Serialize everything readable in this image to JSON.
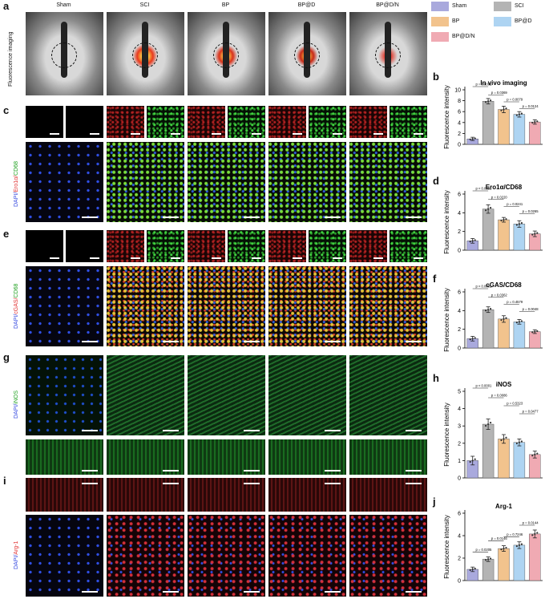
{
  "panel_letters": {
    "a": "a",
    "b": "b",
    "c": "c",
    "d": "d",
    "e": "e",
    "f": "f",
    "g": "g",
    "h": "h",
    "i": "i",
    "j": "j"
  },
  "groups": [
    "Sham",
    "SCI",
    "BP",
    "BP@D",
    "BP@D/N"
  ],
  "row_labels": {
    "a": "Fluorescence imaging",
    "c_dapi": "DAPI/",
    "c_red": "Ero1α/",
    "c_green": "CD68",
    "e_dapi": "DAPI/",
    "e_red": "cGAS/",
    "e_green": "CD68",
    "g_dapi": "DAPI/",
    "g_green": "iNOS",
    "i_dapi": "DAPI/",
    "i_red": "Arg-1"
  },
  "legend": {
    "items": [
      {
        "label": "Sham",
        "color": "#a9a9dd"
      },
      {
        "label": "SCI",
        "color": "#b4b4b4"
      },
      {
        "label": "BP",
        "color": "#f2c38d"
      },
      {
        "label": "BP@D",
        "color": "#aed4f2"
      },
      {
        "label": "BP@D/N",
        "color": "#f0aab3"
      }
    ]
  },
  "colors": {
    "sham": "#a9a9dd",
    "sci": "#b4b4b4",
    "bp": "#f2c38d",
    "bpd": "#aed4f2",
    "bpdn": "#f0aab3"
  },
  "chart_data": [
    {
      "panel": "b",
      "type": "bar",
      "title": "In vivo imaging",
      "ylabel": "Fluorescence intensity",
      "categories": [
        "Sham",
        "SCI",
        "BP",
        "BP@D",
        "BP@D/N"
      ],
      "values": [
        1.0,
        7.9,
        6.4,
        5.5,
        4.1
      ],
      "errors": [
        0.3,
        0.5,
        0.6,
        0.5,
        0.4
      ],
      "ylim": [
        0,
        10
      ],
      "yticks": [
        0,
        2,
        4,
        6,
        8,
        10
      ],
      "pvalues": [
        {
          "from": 0,
          "to": 1,
          "label": "p = 0.0001"
        },
        {
          "from": 1,
          "to": 2,
          "label": "p = 0.0369"
        },
        {
          "from": 2,
          "to": 3,
          "label": "p = 0.0079"
        },
        {
          "from": 3,
          "to": 4,
          "label": "p = 0.0124"
        }
      ]
    },
    {
      "panel": "d",
      "type": "bar",
      "title": "Ero1α/CD68",
      "ylabel": "Fluorescence intensity",
      "categories": [
        "Sham",
        "SCI",
        "BP",
        "BP@D",
        "BP@D/N"
      ],
      "values": [
        1.0,
        4.4,
        3.25,
        2.8,
        1.75
      ],
      "errors": [
        0.25,
        0.45,
        0.25,
        0.35,
        0.3
      ],
      "ylim": [
        0,
        6
      ],
      "yticks": [
        0,
        2,
        4,
        6
      ],
      "pvalues": [
        {
          "from": 0,
          "to": 1,
          "label": "p < 0.0001"
        },
        {
          "from": 1,
          "to": 2,
          "label": "p = 0.0220"
        },
        {
          "from": 2,
          "to": 3,
          "label": "p = 0.0241"
        },
        {
          "from": 3,
          "to": 4,
          "label": "p = 0.0265"
        }
      ]
    },
    {
      "panel": "f",
      "type": "bar",
      "title": "cGAS/CD68",
      "ylabel": "Fluorescence intensity",
      "categories": [
        "Sham",
        "SCI",
        "BP",
        "BP@D",
        "BP@D/N"
      ],
      "values": [
        1.0,
        4.1,
        3.1,
        2.8,
        1.75
      ],
      "errors": [
        0.25,
        0.3,
        0.35,
        0.25,
        0.2
      ],
      "ylim": [
        0,
        6
      ],
      "yticks": [
        0,
        2,
        4,
        6
      ],
      "pvalues": [
        {
          "from": 0,
          "to": 1,
          "label": "p < 0.0001"
        },
        {
          "from": 1,
          "to": 2,
          "label": "p = 0.0362"
        },
        {
          "from": 2,
          "to": 3,
          "label": "p = 0.4579"
        },
        {
          "from": 3,
          "to": 4,
          "label": "p = 0.0048"
        }
      ]
    },
    {
      "panel": "h",
      "type": "bar",
      "title": "iNOS",
      "ylabel": "Fluorescence intensity",
      "categories": [
        "Sham",
        "SCI",
        "BP",
        "BP@D",
        "BP@D/N"
      ],
      "values": [
        1.0,
        3.1,
        2.25,
        2.05,
        1.35
      ],
      "errors": [
        0.25,
        0.3,
        0.25,
        0.2,
        0.2
      ],
      "ylim": [
        0,
        5
      ],
      "yticks": [
        0,
        1,
        2,
        3,
        4,
        5
      ],
      "pvalues": [
        {
          "from": 0,
          "to": 1,
          "label": "p < 0.0001"
        },
        {
          "from": 1,
          "to": 2,
          "label": "p = 0.0086"
        },
        {
          "from": 2,
          "to": 3,
          "label": "p = 0.5323"
        },
        {
          "from": 3,
          "to": 4,
          "label": "p = 0.0477"
        }
      ]
    },
    {
      "panel": "j",
      "type": "bar",
      "title": "Arg-1",
      "ylabel": "Fluorescence intensity",
      "categories": [
        "Sham",
        "SCI",
        "BP",
        "BP@D",
        "BP@D/N"
      ],
      "values": [
        1.0,
        1.9,
        2.85,
        3.15,
        4.15
      ],
      "errors": [
        0.2,
        0.2,
        0.25,
        0.3,
        0.35
      ],
      "ylim": [
        0,
        6
      ],
      "yticks": [
        0,
        2,
        4,
        6
      ],
      "pvalues": [
        {
          "from": 0,
          "to": 1,
          "label": "p = 0.0205"
        },
        {
          "from": 1,
          "to": 2,
          "label": "p = 0.0146"
        },
        {
          "from": 2,
          "to": 3,
          "label": "p = 0.7246"
        },
        {
          "from": 3,
          "to": 4,
          "label": "p = 0.0144"
        }
      ]
    }
  ]
}
